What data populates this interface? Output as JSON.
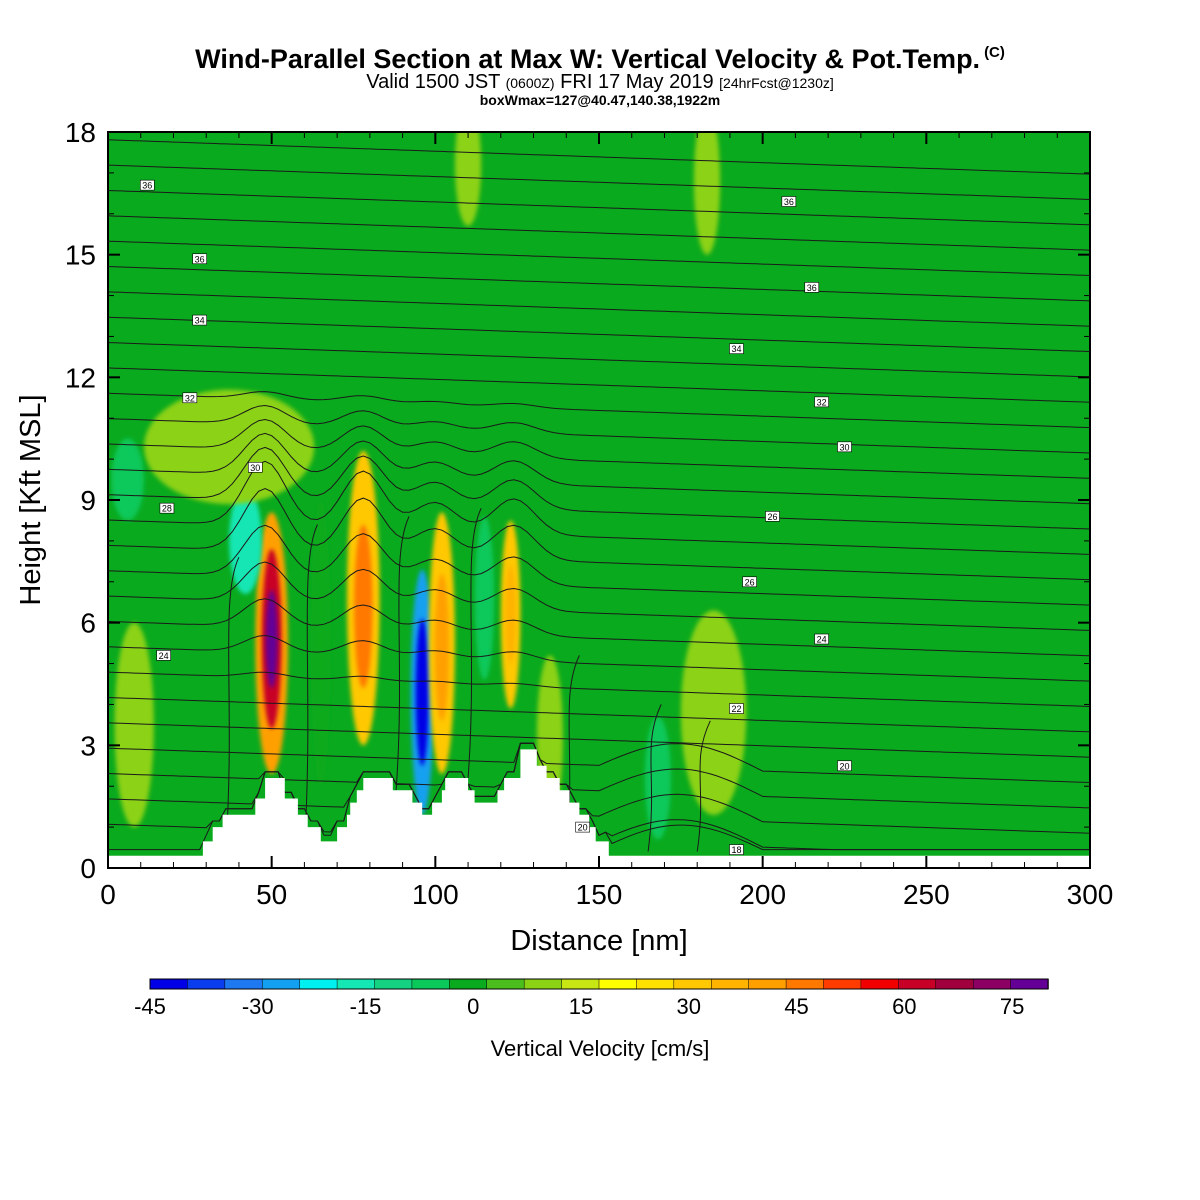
{
  "title": {
    "main": "Wind-Parallel Section at Max W: Vertical Velocity & Pot.Temp.",
    "copyright": "(C)",
    "valid_prefix": "Valid 1500 JST",
    "valid_utc": "(0600Z)",
    "valid_date": "FRI 17 May 2019",
    "forecast": "[24hrFcst@1230z]",
    "box_info": "boxWmax=127@40.47,140.38,1922m"
  },
  "chart_data": {
    "type": "heatmap",
    "xlabel": "Distance [nm]",
    "ylabel": "Height [Kft MSL]",
    "xlim": [
      0,
      300
    ],
    "ylim": [
      0,
      18
    ],
    "x_ticks": [
      "0",
      "50",
      "100",
      "150",
      "200",
      "250",
      "300"
    ],
    "y_ticks": [
      "0",
      "3",
      "6",
      "9",
      "12",
      "15",
      "18"
    ],
    "background_color": "#0aaa1e",
    "colorbar": {
      "label": "Vertical Velocity [cm/s]",
      "min": -45,
      "max": 80,
      "step": 5,
      "tick_labels": [
        "-45",
        "-30",
        "-15",
        "0",
        "15",
        "30",
        "45",
        "60",
        "75"
      ],
      "colors": [
        "#0000e6",
        "#0a3cf0",
        "#1e78f0",
        "#14a0f0",
        "#00f0f0",
        "#14e6b4",
        "#14d282",
        "#0ac85a",
        "#0aaa1e",
        "#4bbe1e",
        "#8cd214",
        "#c8e614",
        "#ffff00",
        "#ffe100",
        "#ffc800",
        "#ffb400",
        "#ffa000",
        "#ff7800",
        "#ff3c00",
        "#f00000",
        "#c80028",
        "#a0003c",
        "#8c0064",
        "#640096"
      ]
    },
    "terrain": [
      [
        0,
        0.3
      ],
      [
        29,
        0.3
      ],
      [
        29,
        0.65
      ],
      [
        32,
        0.65
      ],
      [
        32,
        1.0
      ],
      [
        35,
        1.0
      ],
      [
        35,
        1.3
      ],
      [
        45,
        1.3
      ],
      [
        45,
        1.7
      ],
      [
        48,
        1.7
      ],
      [
        48,
        2.2
      ],
      [
        54,
        2.2
      ],
      [
        54,
        1.7
      ],
      [
        58,
        1.7
      ],
      [
        58,
        1.3
      ],
      [
        61,
        1.3
      ],
      [
        61,
        1.0
      ],
      [
        65,
        1.0
      ],
      [
        65,
        0.65
      ],
      [
        70,
        0.65
      ],
      [
        70,
        1.0
      ],
      [
        73,
        1.0
      ],
      [
        73,
        1.3
      ],
      [
        74,
        1.3
      ],
      [
        74,
        1.6
      ],
      [
        76,
        1.6
      ],
      [
        76,
        1.9
      ],
      [
        78,
        1.9
      ],
      [
        78,
        2.2
      ],
      [
        87,
        2.2
      ],
      [
        87,
        1.9
      ],
      [
        93,
        1.9
      ],
      [
        93,
        1.6
      ],
      [
        96,
        1.6
      ],
      [
        96,
        1.3
      ],
      [
        99,
        1.3
      ],
      [
        99,
        1.6
      ],
      [
        102,
        1.6
      ],
      [
        102,
        1.9
      ],
      [
        103,
        1.9
      ],
      [
        103,
        2.2
      ],
      [
        110,
        2.2
      ],
      [
        110,
        1.9
      ],
      [
        112,
        1.9
      ],
      [
        112,
        1.6
      ],
      [
        119,
        1.6
      ],
      [
        119,
        1.9
      ],
      [
        121,
        1.9
      ],
      [
        121,
        2.2
      ],
      [
        126,
        2.2
      ],
      [
        126,
        2.9
      ],
      [
        131,
        2.9
      ],
      [
        131,
        2.5
      ],
      [
        134,
        2.5
      ],
      [
        134,
        2.2
      ],
      [
        138,
        2.2
      ],
      [
        138,
        1.9
      ],
      [
        141,
        1.9
      ],
      [
        141,
        1.6
      ],
      [
        144,
        1.6
      ],
      [
        144,
        1.3
      ],
      [
        147,
        1.3
      ],
      [
        147,
        1.0
      ],
      [
        149,
        1.0
      ],
      [
        149,
        0.65
      ],
      [
        153,
        0.65
      ],
      [
        153,
        0.3
      ],
      [
        300,
        0.3
      ]
    ],
    "vertical_velocity_cells": [
      {
        "x": 50,
        "y": 5.5,
        "rx": 5,
        "ry": 3.2,
        "w": 35
      },
      {
        "x": 50,
        "y": 5.6,
        "rx": 3,
        "ry": 2.2,
        "w": 55
      },
      {
        "x": 50,
        "y": 5.6,
        "rx": 1.8,
        "ry": 1.2,
        "w": 70
      },
      {
        "x": 42,
        "y": 8.0,
        "rx": 5,
        "ry": 1.3,
        "w": -20
      },
      {
        "x": 78,
        "y": 6.6,
        "rx": 5,
        "ry": 3.6,
        "w": 25
      },
      {
        "x": 78,
        "y": 6.4,
        "rx": 2.8,
        "ry": 2.0,
        "w": 40
      },
      {
        "x": 65,
        "y": 5.5,
        "rx": 3,
        "ry": 3.5,
        "w": -5
      },
      {
        "x": 96,
        "y": 4.3,
        "rx": 3.5,
        "ry": 3.0,
        "w": -28
      },
      {
        "x": 96,
        "y": 4.3,
        "rx": 2.0,
        "ry": 1.8,
        "w": -42
      },
      {
        "x": 102,
        "y": 5.5,
        "rx": 4,
        "ry": 3.2,
        "w": 25
      },
      {
        "x": 102,
        "y": 5.4,
        "rx": 2.2,
        "ry": 1.8,
        "w": 35
      },
      {
        "x": 123,
        "y": 6.2,
        "rx": 3,
        "ry": 2.3,
        "w": 25
      },
      {
        "x": 123,
        "y": 6.2,
        "rx": 1.6,
        "ry": 1.2,
        "w": 32
      },
      {
        "x": 115,
        "y": 6.6,
        "rx": 3,
        "ry": 2.0,
        "w": -10
      },
      {
        "x": 135,
        "y": 3.2,
        "rx": 4,
        "ry": 2.0,
        "w": 8
      },
      {
        "x": 185,
        "y": 3.8,
        "rx": 10,
        "ry": 2.5,
        "w": 7
      },
      {
        "x": 168,
        "y": 2.2,
        "rx": 4,
        "ry": 1.5,
        "w": -8
      },
      {
        "x": 37,
        "y": 10.3,
        "rx": 26,
        "ry": 1.4,
        "w": 7
      },
      {
        "x": 110,
        "y": 17.2,
        "rx": 4,
        "ry": 1.5,
        "w": 8
      },
      {
        "x": 183,
        "y": 16.8,
        "rx": 4,
        "ry": 1.8,
        "w": 6
      },
      {
        "x": 8,
        "y": 3.5,
        "rx": 6,
        "ry": 2.5,
        "w": 5
      },
      {
        "x": 6,
        "y": 9.5,
        "rx": 5,
        "ry": 1.0,
        "w": -6
      }
    ],
    "theta_levels": [
      {
        "label": "18",
        "z": 0.45,
        "x": 192
      },
      {
        "label": "20",
        "z": 1.0,
        "x": 145
      },
      {
        "label": "20",
        "z": 2.5,
        "x": 225
      },
      {
        "label": "22",
        "z": 3.9,
        "x": 192
      },
      {
        "label": "24",
        "z": 5.2,
        "x": 17
      },
      {
        "label": "24",
        "z": 5.6,
        "x": 218
      },
      {
        "label": "26",
        "z": 7.0,
        "x": 196
      },
      {
        "label": "26",
        "z": 8.6,
        "x": 203
      },
      {
        "label": "28",
        "z": 8.8,
        "x": 18
      },
      {
        "label": "30",
        "z": 9.8,
        "x": 45
      },
      {
        "label": "30",
        "z": 10.3,
        "x": 225
      },
      {
        "label": "32",
        "z": 11.5,
        "x": 25
      },
      {
        "label": "32",
        "z": 11.4,
        "x": 218
      },
      {
        "label": "34",
        "z": 13.4,
        "x": 28
      },
      {
        "label": "34",
        "z": 12.7,
        "x": 192
      },
      {
        "label": "36",
        "z": 14.9,
        "x": 28
      },
      {
        "label": "36",
        "z": 14.2,
        "x": 215
      },
      {
        "label": "36",
        "z": 16.7,
        "x": 12
      },
      {
        "label": "36",
        "z": 16.3,
        "x": 208
      }
    ]
  }
}
